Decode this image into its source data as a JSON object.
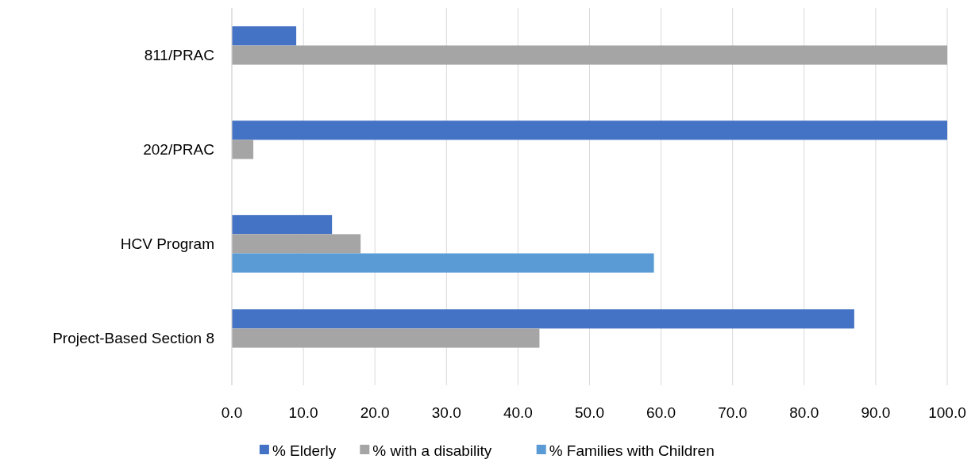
{
  "chart_data": {
    "type": "bar",
    "orientation": "horizontal",
    "categories": [
      "811/PRAC",
      "202/PRAC",
      "HCV Program",
      "Project-Based Section 8"
    ],
    "series": [
      {
        "name": "% Elderly",
        "color": "#4472c4",
        "values": [
          9.0,
          100.0,
          14.0,
          87.0
        ]
      },
      {
        "name": "% with a disability",
        "color": "#a5a5a5",
        "values": [
          100.0,
          3.0,
          18.0,
          43.0
        ]
      },
      {
        "name": "% Families with Children",
        "color": "#5b9bd5",
        "values": [
          null,
          null,
          59.0,
          null
        ]
      }
    ],
    "xlim": [
      0,
      100
    ],
    "xticks": [
      {
        "value": 0,
        "label": "0.0"
      },
      {
        "value": 10,
        "label": "10.0"
      },
      {
        "value": 20,
        "label": "20.0"
      },
      {
        "value": 30,
        "label": "30.0"
      },
      {
        "value": 40,
        "label": "40.0"
      },
      {
        "value": 50,
        "label": "50.0"
      },
      {
        "value": 60,
        "label": "60.0"
      },
      {
        "value": 70,
        "label": "70.0"
      },
      {
        "value": 80,
        "label": "80.0"
      },
      {
        "value": 90,
        "label": "90.0"
      },
      {
        "value": 100,
        "label": "100.0"
      }
    ],
    "grid": "x",
    "legend": "bottom"
  }
}
